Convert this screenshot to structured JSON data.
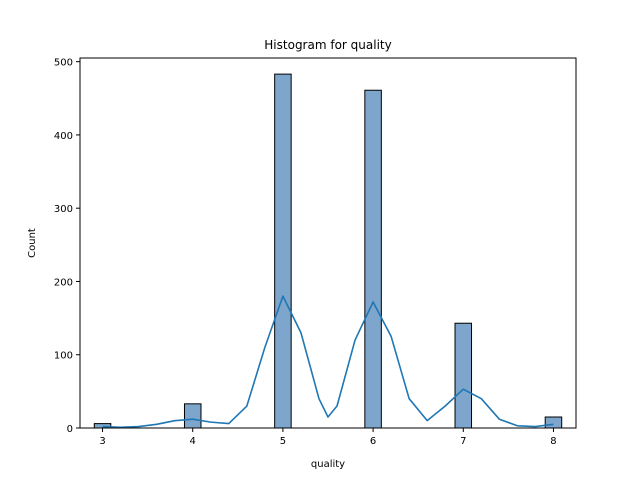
{
  "chart_data": {
    "type": "bar",
    "title": "Histogram for quality",
    "xlabel": "quality",
    "ylabel": "Count",
    "xlim": [
      2.75,
      8.25
    ],
    "ylim": [
      0,
      505
    ],
    "xticks": [
      3,
      4,
      5,
      6,
      7,
      8
    ],
    "yticks": [
      0,
      100,
      200,
      300,
      400,
      500
    ],
    "bins": [
      {
        "x": 3,
        "count": 6
      },
      {
        "x": 4,
        "count": 33
      },
      {
        "x": 5,
        "count": 483
      },
      {
        "x": 6,
        "count": 461
      },
      {
        "x": 7,
        "count": 143
      },
      {
        "x": 8,
        "count": 15
      }
    ],
    "kde": {
      "x": [
        3.0,
        3.2,
        3.4,
        3.6,
        3.8,
        4.0,
        4.2,
        4.4,
        4.6,
        4.8,
        5.0,
        5.2,
        5.4,
        5.5,
        5.6,
        5.8,
        6.0,
        6.2,
        6.4,
        6.6,
        6.8,
        7.0,
        7.2,
        7.4,
        7.6,
        7.8,
        8.0
      ],
      "y": [
        2,
        1,
        2,
        5,
        10,
        12,
        8,
        6,
        30,
        110,
        180,
        130,
        40,
        15,
        30,
        120,
        172,
        125,
        40,
        10,
        30,
        53,
        40,
        12,
        3,
        2,
        5
      ]
    },
    "colors": {
      "bar_fill": "#7ea6cc",
      "bar_edge": "#000000",
      "kde_line": "#1f77b4"
    },
    "grid": false
  }
}
